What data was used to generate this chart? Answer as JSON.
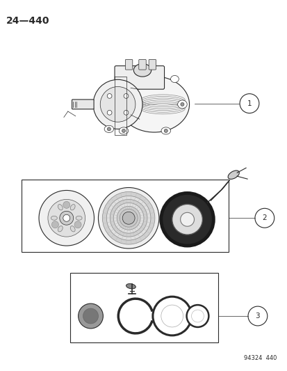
{
  "title": "24—440",
  "footer": "94324  440",
  "background_color": "#ffffff",
  "line_color": "#2a2a2a",
  "fig_width": 4.14,
  "fig_height": 5.33,
  "dpi": 100
}
